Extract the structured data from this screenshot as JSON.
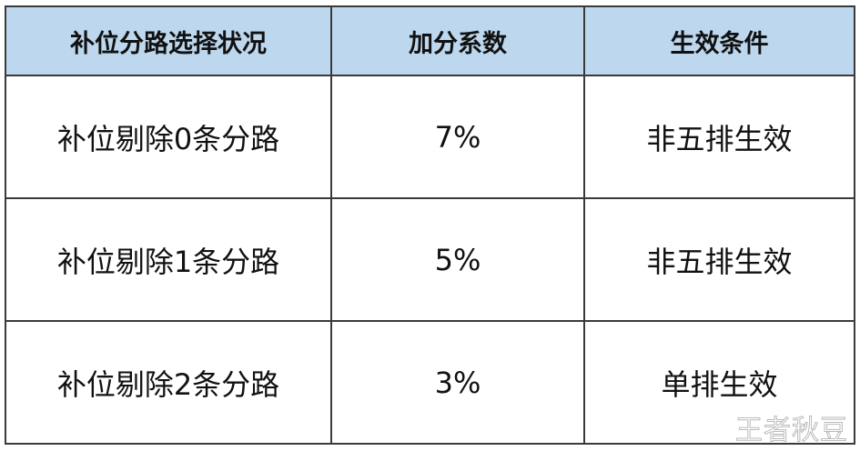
{
  "table": {
    "headers": [
      "补位分路选择状况",
      "加分系数",
      "生效条件"
    ],
    "rows": [
      [
        "补位剔除0条分路",
        "7%",
        "非五排生效"
      ],
      [
        "补位剔除1条分路",
        "5%",
        "非五排生效"
      ],
      [
        "补位剔除2条分路",
        "3%",
        "单排生效"
      ]
    ],
    "header_bg": "#bdd7ee"
  },
  "watermark": "王者秋豆"
}
